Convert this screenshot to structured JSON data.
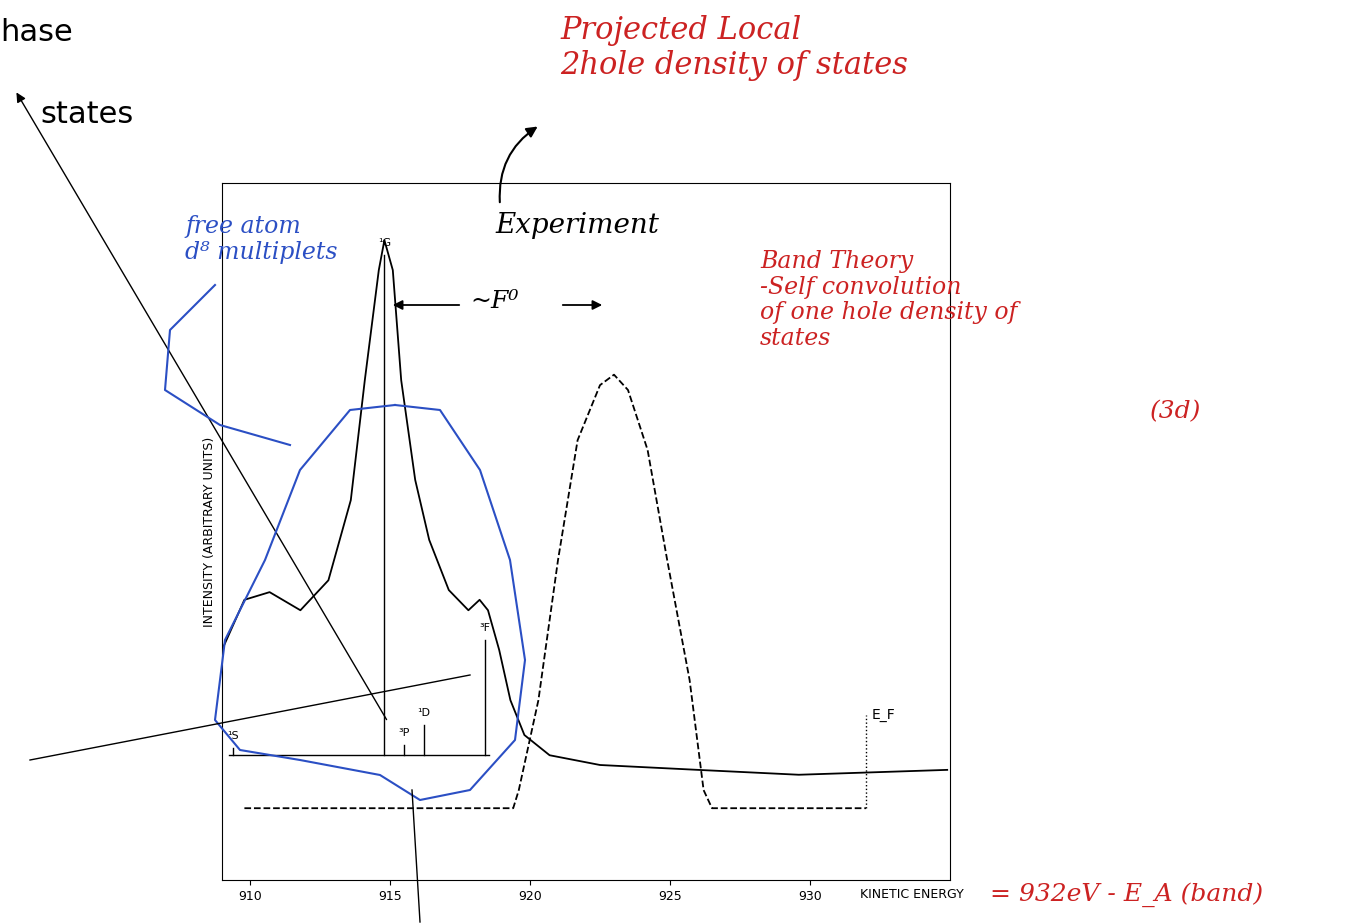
{
  "chart_data": {
    "type": "line",
    "x_label": "KINETIC ENERGY",
    "y_label": "INTENSITY (ARBITRARY UNITS)",
    "xlim": [
      909,
      935
    ],
    "ylim": [
      0,
      100
    ],
    "xticks": [
      910,
      915,
      920,
      925,
      930
    ],
    "yticks": [],
    "tick_labels": "x",
    "series": [
      {
        "color": "#000000",
        "line_style": "solid",
        "x": [
          909.0,
          909.8,
          910.7,
          911.8,
          912.8,
          913.6,
          914.1,
          914.6,
          914.8,
          915.1,
          915.4,
          915.9,
          916.4,
          917.1,
          917.8,
          918.2,
          918.5,
          918.9,
          919.3,
          919.8,
          920.7,
          922.5,
          926.0,
          929.6,
          934.9
        ],
        "values": [
          33.0,
          40.2,
          41.3,
          38.7,
          43.0,
          54.5,
          71.7,
          87.5,
          91.8,
          87.5,
          71.7,
          57.4,
          48.8,
          41.6,
          38.7,
          40.2,
          38.7,
          33.0,
          25.8,
          20.8,
          17.9,
          16.5,
          15.8,
          15.1,
          15.8
        ]
      },
      {
        "color": "#000000",
        "line_style": "dashed",
        "x": [
          909.8,
          919.4,
          919.6,
          920.3,
          921.0,
          921.7,
          922.5,
          923.0,
          923.5,
          924.2,
          924.9,
          925.7,
          926.2,
          926.5,
          932.0
        ],
        "values": [
          10.3,
          10.3,
          12.9,
          25.8,
          45.9,
          63.1,
          71.0,
          72.5,
          70.3,
          61.7,
          45.9,
          28.7,
          12.9,
          10.3,
          10.3
        ]
      }
    ],
    "multiplets": {
      "color": "#000000",
      "line_style": "solid",
      "baseline": 17.9,
      "labels": [
        "¹S",
        "¹G",
        "³P",
        "¹D",
        "³F"
      ],
      "x": [
        909.4,
        914.8,
        915.5,
        916.2,
        918.4
      ],
      "values": [
        18.9,
        89.7,
        19.4,
        22.2,
        34.4
      ]
    },
    "fermi_level": {
      "label": "E_F",
      "x": 932,
      "values": [
        10.3,
        23.7
      ],
      "line_style": "dotted",
      "color": "#000000"
    },
    "annotations": [
      {
        "text": "hase",
        "color": "#000000"
      },
      {
        "text": "states",
        "color": "#000000"
      },
      {
        "text": "Projected Local\n2hole density of states",
        "color": "#cc2222"
      },
      {
        "text": "Experiment",
        "color": "#000000"
      },
      {
        "text": "~F⁰",
        "color": "#000000"
      },
      {
        "text": "Band Theory\n-Self convolution\nof one hole density of\nstates",
        "color": "#cc2222"
      },
      {
        "text": "(3d)",
        "color": "#cc2222"
      },
      {
        "text": "free atom\nd⁸ multiplets",
        "color": "#2b4fc4"
      },
      {
        "text": "= 932eV - E_A (band)",
        "color": "#cc2222"
      }
    ]
  }
}
